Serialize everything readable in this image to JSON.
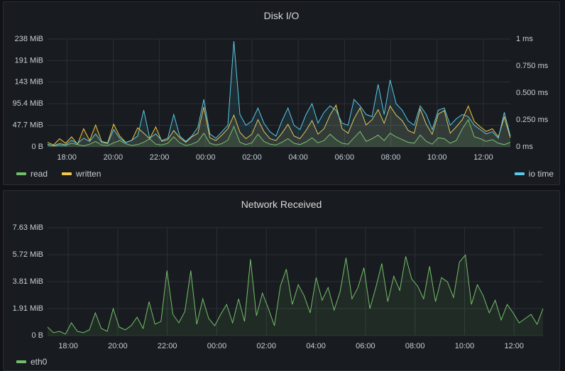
{
  "colors": {
    "read": "#73bf69",
    "written": "#f2c94c",
    "io_time": "#5ac8e8",
    "eth0": "#73bf69",
    "grid": "#2c3036"
  },
  "panels": [
    {
      "title": "Disk I/O",
      "y_left_ticks": [
        "238 MiB",
        "191 MiB",
        "143 MiB",
        "95.4 MiB",
        "47.7 MiB",
        "0 B"
      ],
      "y_right_ticks": [
        "1 ms",
        "0.750 ms",
        "0.500 ms",
        "0.250 ms",
        "0 ms"
      ],
      "x_ticks": [
        "18:00",
        "20:00",
        "22:00",
        "00:00",
        "02:00",
        "04:00",
        "06:00",
        "08:00",
        "10:00",
        "12:00"
      ],
      "legend_left": [
        "read",
        "written"
      ],
      "legend_right": [
        "io time"
      ]
    },
    {
      "title": "Network Received",
      "y_left_ticks": [
        "7.63 MiB",
        "5.72 MiB",
        "3.81 MiB",
        "1.91 MiB",
        "0 B"
      ],
      "x_ticks": [
        "18:00",
        "20:00",
        "22:00",
        "00:00",
        "02:00",
        "04:00",
        "06:00",
        "08:00",
        "10:00",
        "12:00"
      ],
      "legend_left": [
        "eth0"
      ]
    }
  ],
  "chart_data": [
    {
      "type": "line",
      "title": "Disk I/O",
      "x_range": [
        "17:10",
        "13:10"
      ],
      "ylim_left_mib": [
        0,
        238
      ],
      "ylim_right_ms": [
        0,
        1
      ],
      "series": [
        {
          "name": "read",
          "unit": "MiB",
          "values": [
            6,
            2,
            4,
            3,
            8,
            5,
            2,
            6,
            12,
            4,
            3,
            9,
            14,
            7,
            3,
            5,
            10,
            18,
            6,
            4,
            8,
            22,
            9,
            3,
            6,
            12,
            30,
            8,
            4,
            7,
            15,
            45,
            10,
            5,
            9,
            28,
            12,
            6,
            4,
            10,
            18,
            8,
            5,
            11,
            20,
            9,
            14,
            28,
            16,
            8,
            6,
            20,
            34,
            12,
            18,
            26,
            14,
            30,
            22,
            16,
            10,
            8,
            26,
            12,
            6,
            20,
            18,
            8,
            14,
            40,
            60,
            22,
            18,
            12,
            16,
            8,
            5,
            10
          ]
        },
        {
          "name": "written",
          "unit": "MiB",
          "values": [
            10,
            4,
            18,
            8,
            22,
            6,
            40,
            14,
            48,
            12,
            9,
            50,
            24,
            10,
            14,
            42,
            30,
            18,
            44,
            12,
            16,
            36,
            20,
            10,
            22,
            30,
            88,
            20,
            14,
            26,
            40,
            70,
            32,
            18,
            28,
            60,
            34,
            18,
            14,
            30,
            50,
            24,
            18,
            36,
            58,
            28,
            40,
            70,
            92,
            40,
            30,
            62,
            86,
            48,
            60,
            82,
            52,
            90,
            70,
            58,
            36,
            30,
            84,
            50,
            28,
            72,
            80,
            30,
            44,
            60,
            90,
            56,
            44,
            34,
            40,
            22,
            66,
            20
          ]
        },
        {
          "name": "io time",
          "unit": "ms",
          "values": [
            0.02,
            0.01,
            0.03,
            0.02,
            0.06,
            0.03,
            0.08,
            0.05,
            0.12,
            0.04,
            0.03,
            0.16,
            0.08,
            0.04,
            0.06,
            0.1,
            0.34,
            0.08,
            0.12,
            0.06,
            0.08,
            0.3,
            0.1,
            0.05,
            0.1,
            0.18,
            0.44,
            0.12,
            0.08,
            0.14,
            0.2,
            0.98,
            0.3,
            0.2,
            0.24,
            0.36,
            0.22,
            0.14,
            0.1,
            0.24,
            0.36,
            0.2,
            0.16,
            0.3,
            0.4,
            0.22,
            0.32,
            0.38,
            0.34,
            0.22,
            0.2,
            0.44,
            0.38,
            0.3,
            0.28,
            0.58,
            0.3,
            0.62,
            0.4,
            0.34,
            0.24,
            0.2,
            0.38,
            0.3,
            0.16,
            0.34,
            0.36,
            0.2,
            0.26,
            0.3,
            0.28,
            0.2,
            0.16,
            0.12,
            0.14,
            0.08,
            0.32,
            0.1
          ]
        }
      ]
    },
    {
      "type": "area",
      "title": "Network Received",
      "x_range": [
        "17:10",
        "13:10"
      ],
      "ylim_mib": [
        0,
        7.63
      ],
      "series": [
        {
          "name": "eth0",
          "unit": "MiB",
          "values": [
            0.6,
            0.2,
            0.3,
            0.1,
            0.9,
            0.3,
            0.2,
            0.4,
            1.6,
            0.5,
            0.3,
            1.9,
            0.6,
            0.4,
            0.7,
            1.3,
            0.5,
            2.4,
            0.8,
            1.0,
            4.6,
            1.5,
            0.9,
            1.7,
            4.6,
            0.8,
            2.6,
            1.2,
            0.7,
            1.5,
            2.2,
            0.9,
            2.6,
            1.0,
            5.4,
            1.4,
            3.0,
            1.9,
            0.7,
            3.5,
            4.7,
            2.2,
            3.6,
            2.8,
            1.6,
            4.1,
            2.5,
            3.4,
            1.8,
            3.1,
            5.5,
            2.6,
            3.4,
            4.8,
            1.9,
            3.4,
            5.1,
            2.4,
            4.2,
            3.2,
            5.6,
            4.0,
            3.5,
            2.6,
            4.9,
            2.4,
            4.1,
            3.8,
            2.7,
            5.2,
            5.7,
            2.2,
            3.6,
            2.8,
            1.6,
            2.5,
            1.1,
            2.2,
            1.6,
            0.9,
            1.2,
            1.5,
            0.8,
            1.9
          ]
        }
      ]
    }
  ]
}
